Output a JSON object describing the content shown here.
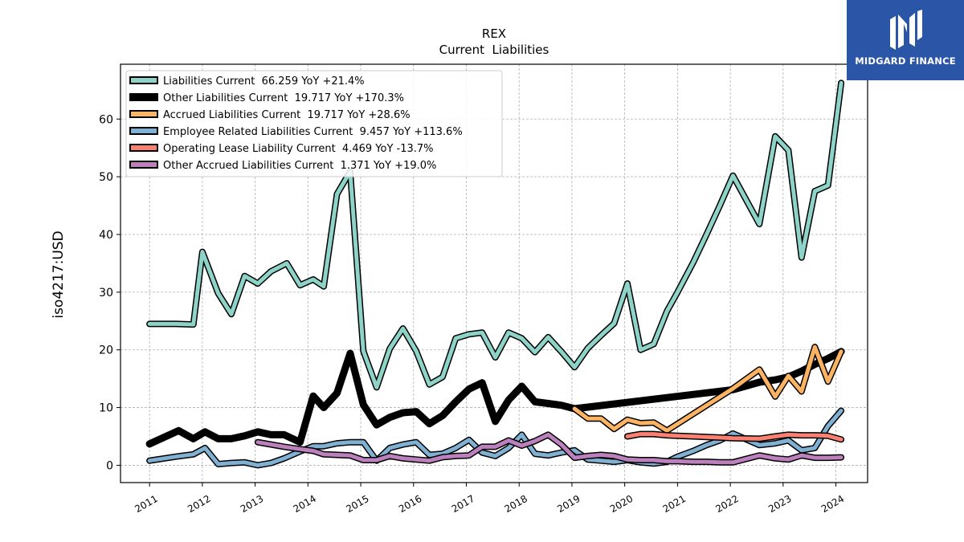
{
  "brand": {
    "name": "MIDGARD FINANCE",
    "color": "#2b56a8",
    "icon": "midgard-logo-icon"
  },
  "chart_data": {
    "type": "line",
    "title": "REX",
    "subtitle": "Current  Liabilities",
    "xlabel": "",
    "ylabel": "iso4217:USD",
    "xlim": [
      2010.45,
      2024.6
    ],
    "ylim": [
      -3,
      69.5
    ],
    "x_ticks": [
      "2011",
      "2012",
      "2013",
      "2014",
      "2015",
      "2016",
      "2017",
      "2018",
      "2019",
      "2020",
      "2021",
      "2022",
      "2023",
      "2024"
    ],
    "y_ticks": [
      0,
      10,
      20,
      30,
      40,
      50,
      60
    ],
    "grid": true,
    "legend_position": "top-left",
    "series": [
      {
        "name": "Liabilities Current  66.259 YoY +21.4%",
        "color": "#8dd3c7",
        "width": 5,
        "x": [
          2011.0,
          2011.5,
          2011.83,
          2012.0,
          2012.3,
          2012.55,
          2012.8,
          2013.05,
          2013.3,
          2013.6,
          2013.85,
          2014.1,
          2014.3,
          2014.55,
          2014.8,
          2015.05,
          2015.3,
          2015.55,
          2015.8,
          2016.05,
          2016.3,
          2016.55,
          2016.8,
          2017.05,
          2017.3,
          2017.55,
          2017.8,
          2018.05,
          2018.3,
          2018.55,
          2018.8,
          2019.05,
          2019.3,
          2019.55,
          2019.8,
          2020.05,
          2020.3,
          2020.55,
          2020.8,
          2021.0,
          2021.3,
          2021.55,
          2021.8,
          2022.05,
          2022.55,
          2022.85,
          2023.1,
          2023.35,
          2023.6,
          2023.85,
          2024.1
        ],
        "y": [
          24.5,
          24.5,
          24.4,
          37.0,
          29.8,
          26.2,
          32.8,
          31.5,
          33.6,
          35.0,
          31.2,
          32.2,
          31.0,
          47.0,
          50.9,
          19.8,
          13.5,
          20.2,
          23.7,
          19.8,
          14.0,
          15.3,
          22.0,
          22.7,
          23.0,
          18.7,
          23.0,
          22.0,
          19.6,
          22.2,
          19.7,
          17.0,
          20.3,
          22.5,
          24.6,
          31.5,
          20.0,
          21.0,
          26.7,
          30.0,
          35.2,
          40.0,
          45.0,
          50.2,
          41.8,
          57.0,
          54.6,
          36.0,
          47.5,
          48.5,
          66.259
        ]
      },
      {
        "name": "Other Liabilities Current  19.717 YoY +170.3%",
        "color": "#000000",
        "width": 9,
        "x": [
          2011.0,
          2011.55,
          2011.83,
          2012.05,
          2012.3,
          2012.55,
          2012.8,
          2013.05,
          2013.3,
          2013.55,
          2013.85,
          2014.1,
          2014.3,
          2014.55,
          2014.8,
          2015.05,
          2015.3,
          2015.55,
          2015.8,
          2016.05,
          2016.3,
          2016.55,
          2016.8,
          2017.05,
          2017.3,
          2017.55,
          2017.8,
          2018.05,
          2018.3,
          2018.55,
          2018.8,
          2019.05,
          2022.05,
          2022.55,
          2022.85,
          2023.1,
          2023.35,
          2023.6,
          2023.85,
          2024.1
        ],
        "y": [
          3.7,
          6.0,
          4.6,
          5.8,
          4.6,
          4.6,
          5.1,
          5.8,
          5.3,
          5.3,
          4.0,
          12.0,
          10.0,
          12.5,
          19.4,
          10.5,
          7.0,
          8.3,
          9.1,
          9.3,
          7.2,
          8.6,
          11.0,
          13.2,
          14.3,
          7.6,
          11.3,
          13.7,
          11.0,
          10.7,
          10.4,
          9.8,
          13.1,
          14.4,
          14.8,
          15.3,
          16.3,
          17.5,
          18.5,
          19.717
        ]
      },
      {
        "name": "Accrued Liabilities Current  19.717 YoY +28.6%",
        "color": "#fdb462",
        "width": 5,
        "x": [
          2019.05,
          2019.3,
          2019.55,
          2019.8,
          2020.05,
          2020.3,
          2020.55,
          2020.8,
          2022.05,
          2022.55,
          2022.85,
          2023.1,
          2023.35,
          2023.6,
          2023.85,
          2024.1
        ],
        "y": [
          9.8,
          8.1,
          8.1,
          6.3,
          7.9,
          7.3,
          7.4,
          6.0,
          13.3,
          16.6,
          11.9,
          15.5,
          12.8,
          20.5,
          14.5,
          19.717
        ]
      },
      {
        "name": "Employee Related Liabilities Current  9.457 YoY +113.6%",
        "color": "#80b1d3",
        "width": 5,
        "x": [
          2011.0,
          2011.5,
          2011.83,
          2012.05,
          2012.3,
          2012.55,
          2012.8,
          2013.05,
          2013.3,
          2013.55,
          2013.85,
          2014.1,
          2014.3,
          2014.55,
          2014.8,
          2015.05,
          2015.3,
          2015.55,
          2015.8,
          2016.05,
          2016.3,
          2016.55,
          2016.8,
          2017.05,
          2017.3,
          2017.55,
          2017.8,
          2018.05,
          2018.3,
          2018.55,
          2018.8,
          2019.05,
          2019.3,
          2019.55,
          2019.8,
          2020.05,
          2020.3,
          2020.55,
          2020.8,
          2021.0,
          2021.3,
          2021.55,
          2021.8,
          2022.05,
          2022.55,
          2022.85,
          2023.1,
          2023.35,
          2023.6,
          2023.85,
          2024.1
        ],
        "y": [
          0.8,
          1.5,
          1.9,
          3.0,
          0.2,
          0.4,
          0.5,
          0.0,
          0.4,
          1.2,
          2.4,
          3.3,
          3.3,
          3.8,
          4.0,
          4.0,
          0.8,
          3.0,
          3.6,
          4.0,
          1.8,
          2.0,
          3.0,
          4.4,
          2.2,
          1.6,
          3.0,
          5.3,
          2.0,
          1.7,
          2.2,
          2.6,
          1.0,
          0.8,
          0.6,
          0.9,
          0.5,
          0.3,
          0.6,
          1.5,
          2.5,
          3.5,
          4.3,
          5.5,
          3.5,
          3.8,
          4.3,
          2.6,
          3.0,
          6.8,
          9.457
        ]
      },
      {
        "name": "Operating Lease Liability Current  4.469 YoY -13.7%",
        "color": "#fb8072",
        "width": 5,
        "x": [
          2020.05,
          2020.3,
          2020.55,
          2020.8,
          2021.0,
          2021.3,
          2021.55,
          2021.8,
          2022.05,
          2022.55,
          2022.85,
          2023.1,
          2023.35,
          2023.6,
          2023.85,
          2024.1
        ],
        "y": [
          5.0,
          5.4,
          5.4,
          5.2,
          5.1,
          5.0,
          4.9,
          4.8,
          4.7,
          4.6,
          5.0,
          5.3,
          5.2,
          5.2,
          5.1,
          4.469
        ]
      },
      {
        "name": "Other Accrued Liabilities Current  1.371 YoY +19.0%",
        "color": "#bc80bd",
        "width": 5,
        "x": [
          2013.05,
          2013.3,
          2013.55,
          2013.85,
          2014.1,
          2014.3,
          2014.55,
          2014.8,
          2015.05,
          2015.3,
          2015.55,
          2015.8,
          2016.05,
          2016.3,
          2016.55,
          2016.8,
          2017.05,
          2017.3,
          2017.55,
          2017.8,
          2018.05,
          2018.3,
          2018.55,
          2018.8,
          2019.05,
          2019.3,
          2019.55,
          2019.8,
          2020.05,
          2020.3,
          2020.55,
          2020.8,
          2021.0,
          2021.3,
          2021.55,
          2021.8,
          2022.05,
          2022.55,
          2022.85,
          2023.1,
          2023.35,
          2023.6,
          2023.85,
          2024.1
        ],
        "y": [
          4.0,
          3.6,
          3.2,
          2.8,
          2.5,
          1.9,
          1.8,
          1.7,
          0.9,
          0.9,
          1.6,
          1.2,
          1.0,
          0.8,
          1.4,
          1.6,
          1.7,
          3.2,
          3.2,
          4.3,
          3.4,
          4.2,
          5.3,
          3.6,
          1.3,
          1.6,
          1.8,
          1.6,
          1.0,
          0.9,
          0.9,
          0.7,
          0.7,
          0.6,
          0.6,
          0.5,
          0.5,
          1.7,
          1.2,
          1.0,
          1.7,
          1.3,
          1.3,
          1.371
        ]
      }
    ]
  }
}
